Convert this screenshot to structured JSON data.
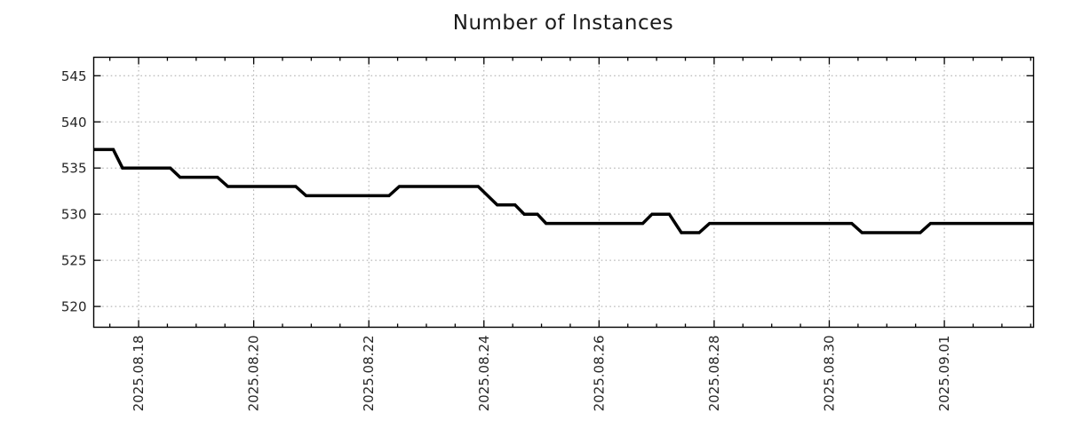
{
  "chart_data": {
    "type": "line",
    "title": "Number of Instances",
    "xlabel": "",
    "ylabel": "",
    "x_unit": "day of month, August 2025 (32 = 2025.09.01, 33 = 2025.09.02)",
    "xlim": [
      17.22,
      33.55
    ],
    "ylim": [
      517.75,
      547.0
    ],
    "grid": "dotted",
    "grid_color": "#a8a8a8",
    "background_color": "#ffffff",
    "legend": "none",
    "y_ticks": [
      520,
      525,
      530,
      535,
      540,
      545
    ],
    "x_major_ticks": [
      {
        "day": 18,
        "label": "2025.08.18"
      },
      {
        "day": 20,
        "label": "2025.08.20"
      },
      {
        "day": 22,
        "label": "2025.08.22"
      },
      {
        "day": 24,
        "label": "2025.08.24"
      },
      {
        "day": 26,
        "label": "2025.08.26"
      },
      {
        "day": 28,
        "label": "2025.08.28"
      },
      {
        "day": 30,
        "label": "2025.08.30"
      },
      {
        "day": 32,
        "label": "2025.09.01"
      }
    ],
    "x_minor_tick_step": 0.5,
    "series": [
      {
        "name": "instances",
        "color": "#000000",
        "line_width": 3.5,
        "points": [
          [
            17.22,
            537
          ],
          [
            17.56,
            537
          ],
          [
            17.72,
            535
          ],
          [
            18.55,
            535
          ],
          [
            18.72,
            534
          ],
          [
            19.37,
            534
          ],
          [
            19.55,
            533
          ],
          [
            20.73,
            533
          ],
          [
            20.91,
            532
          ],
          [
            22.35,
            532
          ],
          [
            22.53,
            533
          ],
          [
            23.9,
            533
          ],
          [
            24.23,
            531
          ],
          [
            24.54,
            531
          ],
          [
            24.7,
            530
          ],
          [
            24.93,
            530
          ],
          [
            25.08,
            529
          ],
          [
            26.76,
            529
          ],
          [
            26.92,
            530
          ],
          [
            27.22,
            530
          ],
          [
            27.43,
            528
          ],
          [
            27.74,
            528
          ],
          [
            27.92,
            529
          ],
          [
            30.39,
            529
          ],
          [
            30.57,
            528
          ],
          [
            31.58,
            528
          ],
          [
            31.76,
            529
          ],
          [
            33.55,
            529
          ]
        ]
      }
    ]
  }
}
